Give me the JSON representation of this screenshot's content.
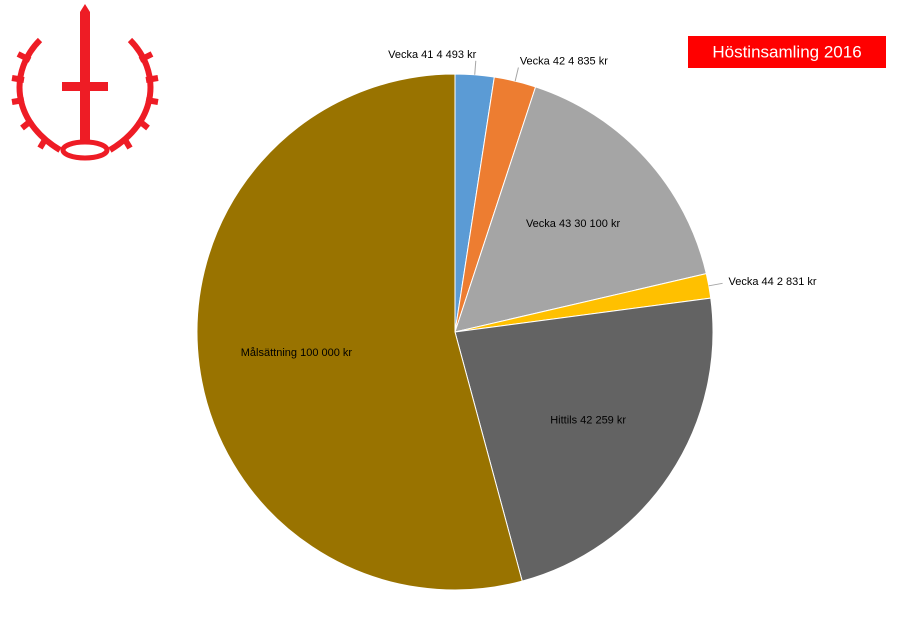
{
  "chart_data": {
    "type": "pie",
    "title": "Höstinsamling 2016",
    "categories": [
      "Vecka 41",
      "Vecka 42",
      "Vecka 43",
      "Vecka 44",
      "Hittils",
      "Målsättning"
    ],
    "values": [
      4493,
      4835,
      30100,
      2831,
      42259,
      100000
    ],
    "value_labels": [
      "4 493 kr",
      "4 835 kr",
      "30 100 kr",
      "2 831 kr",
      "42 259 kr",
      "100 000 kr"
    ],
    "colors": [
      "#5b9bd5",
      "#ed7d31",
      "#a5a5a5",
      "#ffc000",
      "#636363",
      "#997300"
    ]
  }
}
